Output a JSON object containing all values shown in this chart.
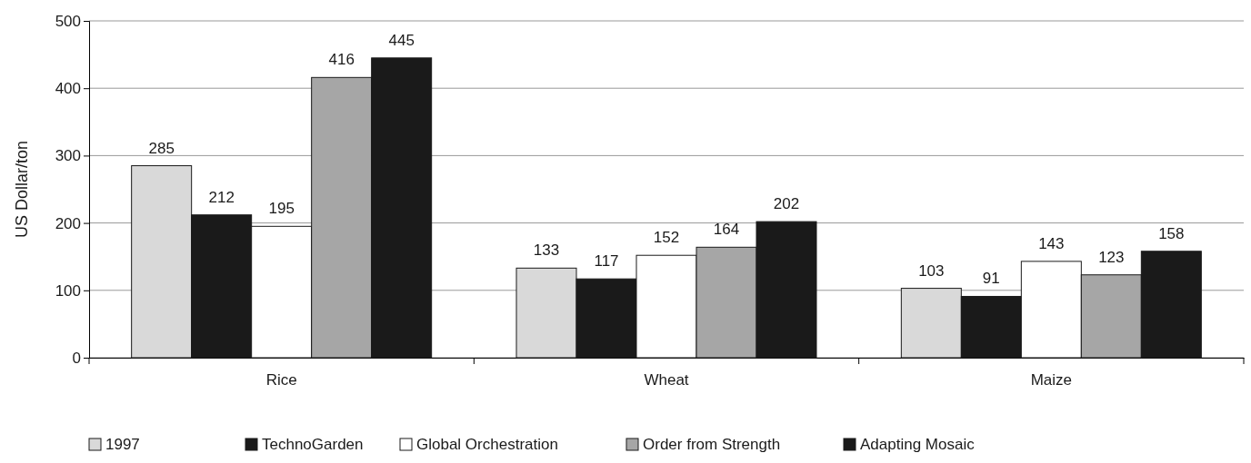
{
  "chart_data": {
    "type": "bar",
    "ylabel": "US Dollar/ton",
    "categories": [
      "Rice",
      "Wheat",
      "Maize"
    ],
    "series": [
      {
        "name": "1997",
        "color": "#d9d9d9",
        "values": [
          285,
          133,
          103
        ]
      },
      {
        "name": "TechnoGarden",
        "color": "#1a1a1a",
        "values": [
          212,
          117,
          91
        ]
      },
      {
        "name": "Global Orchestration",
        "color": "#ffffff",
        "values": [
          195,
          152,
          143
        ]
      },
      {
        "name": "Order from Strength",
        "color": "#a6a6a6",
        "values": [
          416,
          164,
          123
        ]
      },
      {
        "name": "Adapting Mosaic",
        "color": "#1a1a1a",
        "values": [
          445,
          202,
          158
        ]
      }
    ],
    "ylim": [
      0,
      500
    ],
    "yticks": [
      0,
      100,
      200,
      300,
      400,
      500
    ],
    "grid": "y",
    "legend": "bottom",
    "data_labels": true
  }
}
